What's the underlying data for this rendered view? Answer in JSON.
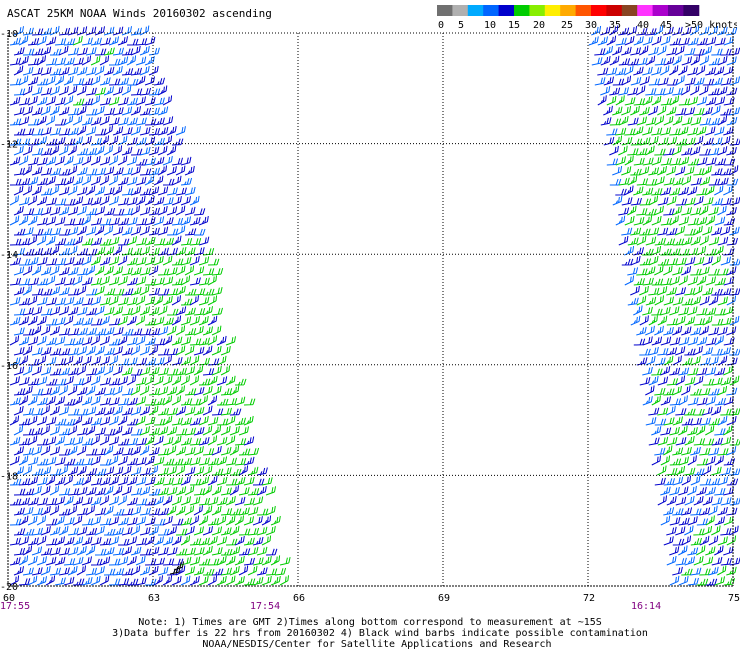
{
  "title": "ASCAT 25KM NOAA Winds 20160302 ascending",
  "legend": {
    "colors": [
      "#707070",
      "#b0b0b0",
      "#00aaff",
      "#0066ff",
      "#0000cc",
      "#00cc00",
      "#88ee00",
      "#ffee00",
      "#ffaa00",
      "#ff5500",
      "#ff0000",
      "#cc0000",
      "#884422",
      "#ff33ff",
      "#aa00cc",
      "#660099",
      "#330066"
    ],
    "labels": [
      "0",
      "5",
      "10",
      "15",
      "20",
      "25",
      "30",
      "35",
      "40",
      "45",
      ">50 knots"
    ]
  },
  "map": {
    "lon_range": [
      60,
      75
    ],
    "lat_range": [
      -20,
      -10
    ],
    "lon_ticks": [
      "60",
      "63",
      "66",
      "69",
      "72",
      "75"
    ],
    "lat_ticks": [
      "-10",
      "-12",
      "-14",
      "-16",
      "-18",
      "-20"
    ],
    "time_labels": [
      "17:55",
      "17:54",
      "16:14"
    ],
    "barb_colors": {
      "blue": "#0000cc",
      "lightblue": "#0066ff",
      "green": "#00cc00",
      "black": "#000000"
    }
  },
  "notes": {
    "line1": "Note: 1) Times are GMT 2)Times along bottom correspond to measurement at ~15S",
    "line2": "3)Data buffer is 22 hrs from 20160302 4) Black wind barbs indicate possible contamination",
    "line3": "NOAA/NESDIS/Center for Satellite Applications and Research"
  }
}
